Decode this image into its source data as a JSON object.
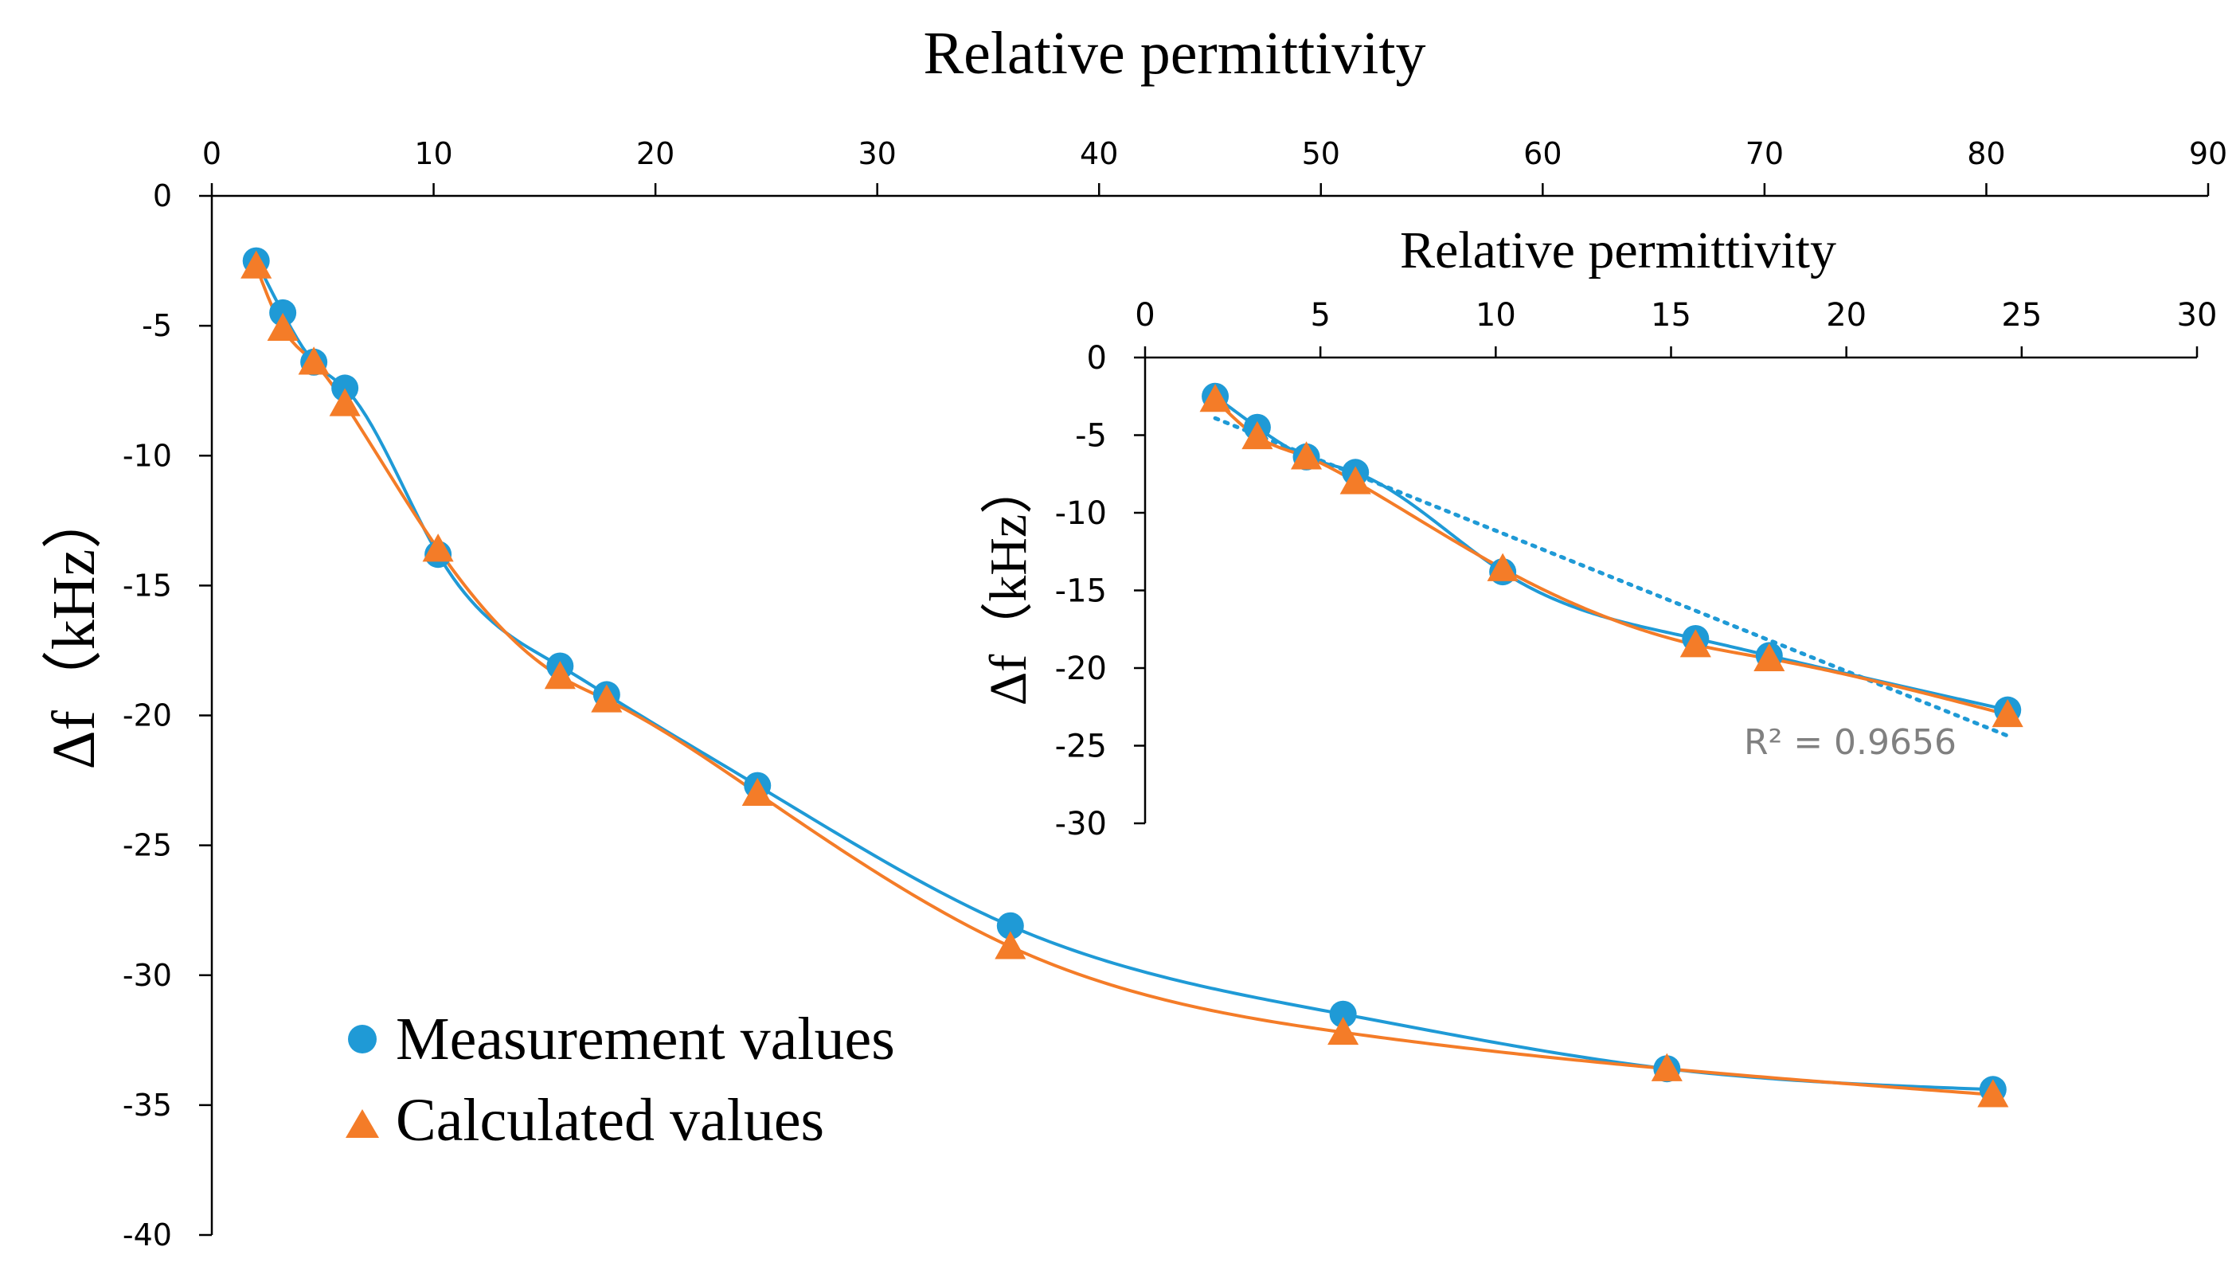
{
  "chart_data": [
    {
      "id": "main",
      "type": "scatter",
      "title": "",
      "xlabel": "Relative permittivity",
      "ylabel": "Δf（kHz）",
      "xlabel_position": "top",
      "xlim": [
        0,
        90
      ],
      "ylim": [
        -40,
        0
      ],
      "xticks": [
        0,
        10,
        20,
        30,
        40,
        50,
        60,
        70,
        80,
        90
      ],
      "yticks": [
        0,
        -5,
        -10,
        -15,
        -20,
        -25,
        -30,
        -35,
        -40
      ],
      "grid": false,
      "legend_position": "bottom-left",
      "series": [
        {
          "name": "Measurement values",
          "marker": "circle",
          "color": "#1F9AD6",
          "trendline": true,
          "points": [
            [
              2.0,
              -2.5
            ],
            [
              3.2,
              -4.5
            ],
            [
              4.6,
              -6.4
            ],
            [
              6.0,
              -7.4
            ],
            [
              10.2,
              -13.8
            ],
            [
              15.7,
              -18.1
            ],
            [
              17.8,
              -19.2
            ],
            [
              24.6,
              -22.7
            ],
            [
              36.0,
              -28.1
            ],
            [
              51.0,
              -31.5
            ],
            [
              65.6,
              -33.6
            ],
            [
              80.3,
              -34.4
            ]
          ]
        },
        {
          "name": "Calculated values",
          "marker": "triangle",
          "color": "#F47C28",
          "trendline": true,
          "points": [
            [
              2.0,
              -2.7
            ],
            [
              3.2,
              -5.1
            ],
            [
              4.6,
              -6.4
            ],
            [
              6.0,
              -8.0
            ],
            [
              10.2,
              -13.6
            ],
            [
              15.7,
              -18.5
            ],
            [
              17.8,
              -19.4
            ],
            [
              24.6,
              -23.0
            ],
            [
              36.0,
              -28.9
            ],
            [
              51.0,
              -32.2
            ],
            [
              65.6,
              -33.6
            ],
            [
              80.3,
              -34.6
            ]
          ]
        }
      ]
    },
    {
      "id": "inset",
      "type": "scatter",
      "title": "",
      "xlabel": "Relative permittivity",
      "ylabel": "Δf（kHz）",
      "xlabel_position": "top",
      "xlim": [
        0,
        30
      ],
      "ylim": [
        -30,
        0
      ],
      "xticks": [
        0,
        5,
        10,
        15,
        20,
        25,
        30
      ],
      "yticks": [
        0,
        -5,
        -10,
        -15,
        -20,
        -25,
        -30
      ],
      "grid": false,
      "annotation": "R² = 0.9656",
      "linear_fit": {
        "slope": -0.905,
        "intercept": -2.1,
        "x_range": [
          2.0,
          24.6
        ],
        "color": "#1F9AD6",
        "style": "dotted"
      },
      "series": [
        {
          "name": "Measurement values",
          "marker": "circle",
          "color": "#1F9AD6",
          "points": [
            [
              2.0,
              -2.5
            ],
            [
              3.2,
              -4.5
            ],
            [
              4.6,
              -6.4
            ],
            [
              6.0,
              -7.4
            ],
            [
              10.2,
              -13.8
            ],
            [
              15.7,
              -18.1
            ],
            [
              17.8,
              -19.2
            ],
            [
              24.6,
              -22.7
            ]
          ]
        },
        {
          "name": "Calculated values",
          "marker": "triangle",
          "color": "#F47C28",
          "points": [
            [
              2.0,
              -2.7
            ],
            [
              3.2,
              -5.1
            ],
            [
              4.6,
              -6.4
            ],
            [
              6.0,
              -8.0
            ],
            [
              10.2,
              -13.6
            ],
            [
              15.7,
              -18.5
            ],
            [
              17.8,
              -19.4
            ],
            [
              24.6,
              -23.0
            ]
          ]
        }
      ]
    }
  ]
}
